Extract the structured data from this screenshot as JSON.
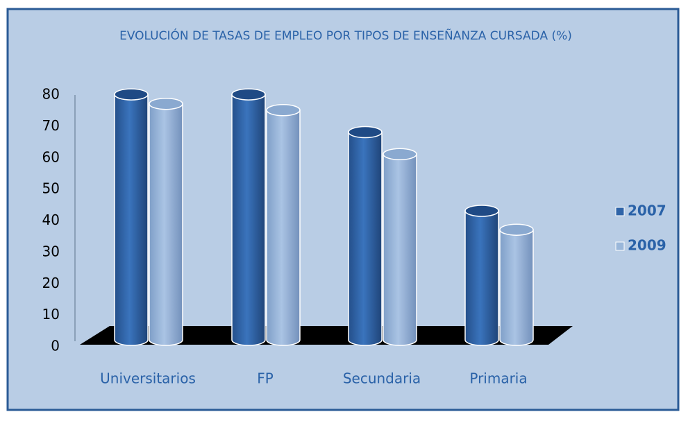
{
  "chart_data": {
    "type": "bar",
    "title": "EVOLUCIÓN DE TASAS DE EMPLEO POR TIPOS DE ENSEÑANZA CURSADA (%)",
    "categories": [
      "Universitarios",
      "FP",
      "Secundaria",
      "Primaria"
    ],
    "series": [
      {
        "name": "2007",
        "color": "#2f64a8",
        "values": [
          78,
          78,
          66,
          41
        ]
      },
      {
        "name": "2009",
        "color": "#9ab7da",
        "values": [
          75,
          73,
          59,
          35
        ]
      }
    ],
    "ylim": [
      0,
      80
    ],
    "yticks": [
      0,
      10,
      20,
      30,
      40,
      50,
      60,
      70,
      80
    ],
    "legend": "right"
  }
}
